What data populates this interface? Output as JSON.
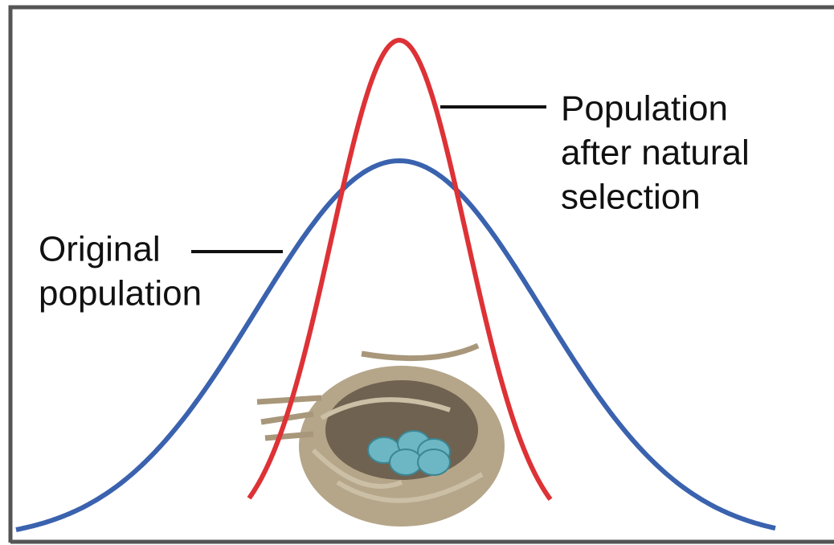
{
  "labels": {
    "after_selection": [
      "Population",
      "after natural",
      "selection"
    ],
    "original": [
      "Original",
      "population"
    ]
  }
}
